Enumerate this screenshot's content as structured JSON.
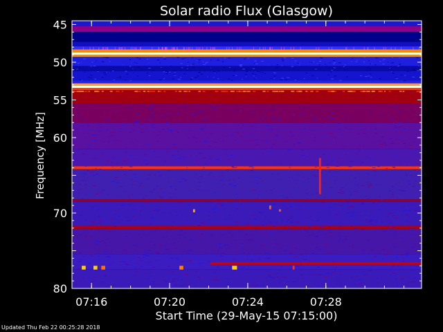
{
  "chart_data": {
    "type": "heatmap",
    "title": "Solar radio Flux (Glasgow)",
    "xlabel": "Start Time (29-May-15 07:15:00)",
    "ylabel": "Frequency [MHz]",
    "x_range_minutes": [
      15.0,
      32.9
    ],
    "x_ticks": [
      {
        "label": "07:16",
        "minute": 16
      },
      {
        "label": "07:20",
        "minute": 20
      },
      {
        "label": "07:24",
        "minute": 24
      },
      {
        "label": "07:28",
        "minute": 28
      }
    ],
    "y_range_mhz": [
      44.5,
      80.0
    ],
    "y_ticks": [
      "45",
      "50",
      "55",
      "60",
      "70",
      "80"
    ],
    "y_tick_values": [
      45,
      50,
      55,
      60,
      65,
      70,
      75,
      80
    ],
    "bands": [
      {
        "from": 44.5,
        "to": 45.2,
        "color": "#1a1acc"
      },
      {
        "from": 45.2,
        "to": 46.0,
        "color": "#8a008a"
      },
      {
        "from": 46.0,
        "to": 47.3,
        "color": "#00008a"
      },
      {
        "from": 47.3,
        "to": 47.9,
        "color": "#1010c0"
      },
      {
        "from": 47.9,
        "to": 48.3,
        "color": "#3030ff"
      },
      {
        "from": 48.3,
        "to": 48.7,
        "color": "#ff8800"
      },
      {
        "from": 48.7,
        "to": 49.0,
        "color": "#ffffd0"
      },
      {
        "from": 49.0,
        "to": 49.3,
        "color": "#ff9000"
      },
      {
        "from": 49.3,
        "to": 50.5,
        "color": "#1f1fe0"
      },
      {
        "from": 50.5,
        "to": 51.2,
        "color": "#0a0aa8"
      },
      {
        "from": 51.2,
        "to": 52.4,
        "color": "#1515d0"
      },
      {
        "from": 52.4,
        "to": 52.8,
        "color": "#2020f0"
      },
      {
        "from": 52.8,
        "to": 53.1,
        "color": "#ff9a30"
      },
      {
        "from": 53.1,
        "to": 53.4,
        "color": "#ffffe0"
      },
      {
        "from": 53.4,
        "to": 53.7,
        "color": "#ff4010"
      },
      {
        "from": 53.7,
        "to": 55.5,
        "color": "#a00010"
      },
      {
        "from": 55.5,
        "to": 58.0,
        "color": "#7a0060"
      },
      {
        "from": 58.0,
        "to": 61.5,
        "color": "#5a10a0"
      },
      {
        "from": 61.5,
        "to": 63.8,
        "color": "#4a18b0"
      },
      {
        "from": 63.8,
        "to": 64.2,
        "color": "#ff3010"
      },
      {
        "from": 64.2,
        "to": 68.2,
        "color": "#4020b0"
      },
      {
        "from": 68.2,
        "to": 68.5,
        "color": "#900030"
      },
      {
        "from": 68.5,
        "to": 71.7,
        "color": "#3a1ab8"
      },
      {
        "from": 71.7,
        "to": 72.1,
        "color": "#b00010"
      },
      {
        "from": 72.1,
        "to": 75.5,
        "color": "#4516a8"
      },
      {
        "from": 75.5,
        "to": 77.5,
        "color": "#3a1cc0"
      },
      {
        "from": 77.5,
        "to": 80.0,
        "color": "#3a1ab8"
      }
    ],
    "features": [
      {
        "t0": 22.1,
        "t1": 32.9,
        "f0": 76.5,
        "f1": 76.85,
        "color": "#cc0000"
      },
      {
        "t0": 15.5,
        "t1": 15.7,
        "f0": 77.0,
        "f1": 77.5,
        "color": "#ffd000"
      },
      {
        "t0": 16.1,
        "t1": 16.3,
        "f0": 77.0,
        "f1": 77.5,
        "color": "#ffd000"
      },
      {
        "t0": 16.5,
        "t1": 16.7,
        "f0": 77.0,
        "f1": 77.5,
        "color": "#ff7000"
      },
      {
        "t0": 20.5,
        "t1": 20.7,
        "f0": 77.0,
        "f1": 77.5,
        "color": "#ff8000"
      },
      {
        "t0": 23.2,
        "t1": 23.45,
        "f0": 77.0,
        "f1": 77.5,
        "color": "#ffd000"
      },
      {
        "t0": 26.3,
        "t1": 26.4,
        "f0": 77.0,
        "f1": 77.5,
        "color": "#ff3000"
      },
      {
        "t0": 27.65,
        "t1": 27.75,
        "f0": 62.7,
        "f1": 67.5,
        "color": "#ff2000"
      },
      {
        "t0": 21.2,
        "t1": 21.3,
        "f0": 69.5,
        "f1": 69.9,
        "color": "#ffaa00"
      },
      {
        "t0": 25.1,
        "t1": 25.2,
        "f0": 69.0,
        "f1": 69.5,
        "color": "#ff6000"
      },
      {
        "t0": 25.6,
        "t1": 25.7,
        "f0": 69.5,
        "f1": 69.8,
        "color": "#ff6000"
      }
    ]
  },
  "footer": "Updated Thu Feb 22 00:25:28 2018"
}
